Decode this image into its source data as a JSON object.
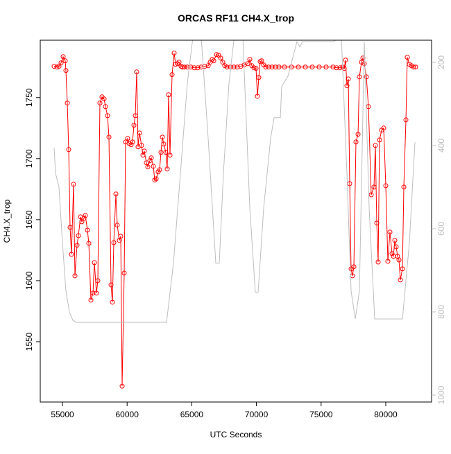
{
  "chart_data": {
    "type": "line",
    "title": "ORCAS RF11 CH4.X_trop",
    "x_label": "UTC Seconds",
    "y_label": "CH4.X_trop",
    "xlim": [
      53283,
      83541
    ],
    "ylim": [
      1500.6,
      1797
    ],
    "y2lim": [
      1016.7,
      146.7
    ],
    "xticks": [
      55000,
      60000,
      65000,
      70000,
      75000,
      80000
    ],
    "yticks": [
      1550,
      1600,
      1650,
      1700,
      1750
    ],
    "y2ticks": [
      200,
      400,
      600,
      800,
      1000
    ],
    "series": [
      {
        "color": "#ff0000",
        "axis": "y",
        "markers": true,
        "x": [
          54356,
          54571,
          54732,
          54893,
          55054,
          55215,
          55268,
          55376,
          55483,
          55590,
          55697,
          55858,
          55966,
          56127,
          56234,
          56395,
          56502,
          56663,
          56770,
          56931,
          57039,
          57200,
          57361,
          57468,
          57629,
          57736,
          57897,
          58058,
          58219,
          58326,
          58487,
          58595,
          58756,
          58863,
          58970,
          59131,
          59238,
          59399,
          59507,
          59614,
          59775,
          59882,
          60043,
          60150,
          60311,
          60419,
          60526,
          60633,
          60740,
          60848,
          60955,
          61116,
          61223,
          61330,
          61492,
          61599,
          61760,
          61867,
          62028,
          62135,
          62243,
          62404,
          62511,
          62618,
          62726,
          62833,
          62994,
          63101,
          63208,
          63316,
          63477,
          63638,
          63745,
          63906,
          64013,
          64174,
          64281,
          64442,
          64657,
          64925,
          65194,
          65462,
          65730,
          65998,
          66267,
          66427,
          66588,
          66696,
          66910,
          67071,
          67232,
          67393,
          67554,
          67715,
          67983,
          68252,
          68520,
          68788,
          69056,
          69325,
          69486,
          69646,
          69807,
          69968,
          70075,
          70183,
          70290,
          70398,
          70559,
          70720,
          70935,
          71203,
          71471,
          71739,
          72168,
          72705,
          73241,
          73778,
          74314,
          74851,
          75387,
          75924,
          76192,
          76460,
          76675,
          76782,
          76889,
          76997,
          77104,
          77211,
          77318,
          77426,
          77533,
          77694,
          77855,
          77962,
          78123,
          78230,
          78338,
          78499,
          78660,
          78874,
          79089,
          79196,
          79303,
          79411,
          79518,
          79679,
          79840,
          80000,
          80161,
          80322,
          80483,
          80590,
          80698,
          80805,
          80912,
          81019,
          81127,
          81288,
          81396,
          81557,
          81664,
          81825,
          81986,
          82147,
          82308
        ],
        "values": [
          1775.6,
          1775,
          1775.6,
          1778.4,
          1783.5,
          1780.1,
          1772.2,
          1745.5,
          1707.4,
          1643.7,
          1621.6,
          1679,
          1604,
          1629,
          1636.9,
          1652.3,
          1648.3,
          1651.1,
          1653.4,
          1641.4,
          1630.6,
          1584.1,
          1589.8,
          1614.8,
          1589.8,
          1600,
          1745.5,
          1750.6,
          1748.9,
          1742.6,
          1735.2,
          1717.6,
          1596.6,
          1582.4,
          1631.2,
          1671,
          1645.5,
          1633,
          1636.4,
          1513.6,
          1606.2,
          1713.6,
          1716.5,
          1712.5,
          1711.4,
          1713.6,
          1727.3,
          1735.2,
          1771,
          1709.7,
          1721,
          1710.8,
          1702.8,
          1706.2,
          1696.6,
          1693.2,
          1698.3,
          1700.6,
          1693.7,
          1682.4,
          1683.5,
          1689.2,
          1690.9,
          1705.1,
          1717.6,
          1711.9,
          1705.1,
          1691.5,
          1752.3,
          1702.8,
          1768.8,
          1786.4,
          1777.3,
          1777.8,
          1779,
          1775.6,
          1775,
          1775,
          1775,
          1775,
          1774.4,
          1774.4,
          1775,
          1775.6,
          1776.1,
          1779,
          1781.3,
          1780.1,
          1785.2,
          1784.7,
          1782.4,
          1779,
          1776.1,
          1775,
          1775,
          1775,
          1775,
          1775.6,
          1776.7,
          1777.8,
          1781.3,
          1776.1,
          1774.4,
          1773.9,
          1751.1,
          1766.5,
          1779.5,
          1780.1,
          1776.7,
          1775,
          1775,
          1775,
          1775,
          1775,
          1775,
          1775,
          1775,
          1775,
          1775,
          1775,
          1775,
          1775,
          1774.4,
          1774.4,
          1775,
          1773.9,
          1780.7,
          1759.7,
          1765.3,
          1679.5,
          1609.7,
          1604,
          1611.4,
          1713.6,
          1719.9,
          1767,
          1779,
          1782.4,
          1777.8,
          1767,
          1742.6,
          1670.4,
          1676.7,
          1710.8,
          1647.2,
          1615.3,
          1715.3,
          1723.3,
          1725,
          1677.8,
          1615.9,
          1639.8,
          1622.2,
          1620,
          1633,
          1627.8,
          1620,
          1617,
          1600.6,
          1609.7,
          1676.7,
          1731.8,
          1783,
          1777.3,
          1776.1,
          1775,
          1775
        ]
      },
      {
        "color": "#bebebe",
        "axis": "y2",
        "markers": false,
        "x": [
          54356,
          54464,
          54732,
          55000,
          55268,
          55537,
          55805,
          56073,
          58219,
          60902,
          63048,
          63584,
          64121,
          64657,
          65086,
          65730,
          66267,
          66857,
          67125,
          67447,
          67876,
          68252,
          68413,
          68949,
          69486,
          69915,
          70130,
          70559,
          71095,
          71363,
          71846,
          71953,
          72436,
          73133,
          73348,
          73563,
          75387,
          75924,
          76568,
          76997,
          77318,
          77640,
          77962,
          78338,
          78713,
          79142,
          81289,
          81826,
          82255
        ],
        "values": [
          405,
          467,
          500,
          633,
          750,
          800,
          820,
          825,
          825,
          825,
          825,
          683,
          467,
          250,
          140,
          140,
          383,
          683,
          683,
          467,
          250,
          147,
          140,
          140,
          550,
          753,
          753,
          550,
          383,
          333,
          333,
          258,
          233,
          150,
          163,
          150,
          150,
          150,
          140,
          467,
          750,
          817,
          750,
          150,
          550,
          817,
          817,
          633,
          392
        ]
      }
    ]
  }
}
